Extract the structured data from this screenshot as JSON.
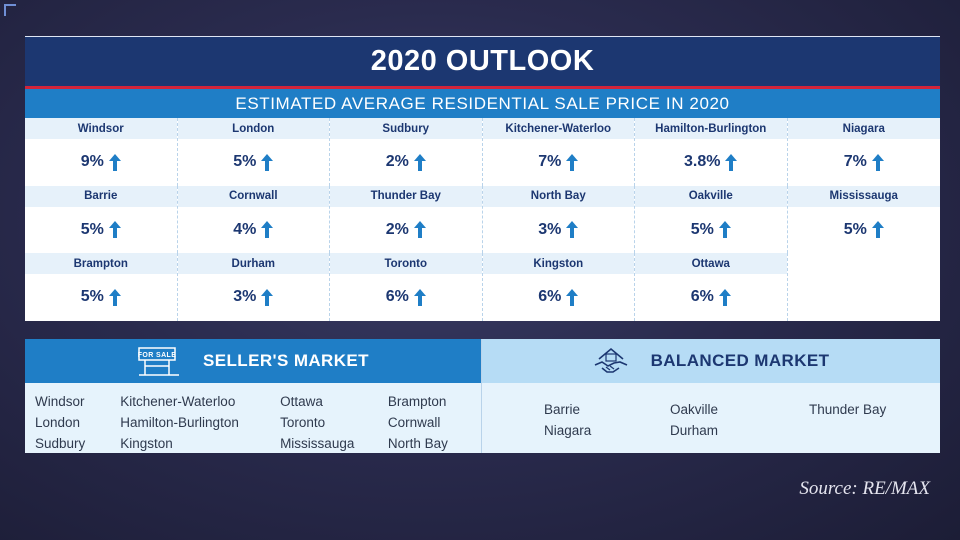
{
  "title": "2020 OUTLOOK",
  "subtitle": "ESTIMATED AVERAGE RESIDENTIAL SALE PRICE IN 2020",
  "cities": [
    {
      "name": "Windsor",
      "value": "9%"
    },
    {
      "name": "London",
      "value": "5%"
    },
    {
      "name": "Sudbury",
      "value": "2%"
    },
    {
      "name": "Kitchener-Waterloo",
      "value": "7%"
    },
    {
      "name": "Hamilton-Burlington",
      "value": "3.8%"
    },
    {
      "name": "Niagara",
      "value": "7%"
    },
    {
      "name": "Barrie",
      "value": "5%"
    },
    {
      "name": "Cornwall",
      "value": "4%"
    },
    {
      "name": "Thunder Bay",
      "value": "2%"
    },
    {
      "name": "North Bay",
      "value": "3%"
    },
    {
      "name": "Oakville",
      "value": "5%"
    },
    {
      "name": "Mississauga",
      "value": "5%"
    },
    {
      "name": "Brampton",
      "value": "5%"
    },
    {
      "name": "Durham",
      "value": "3%"
    },
    {
      "name": "Toronto",
      "value": "6%"
    },
    {
      "name": "Kingston",
      "value": "6%"
    },
    {
      "name": "Ottawa",
      "value": "6%"
    }
  ],
  "trend_icon": "arrow-up-icon",
  "seller": {
    "label": "SELLER'S MARKET",
    "sign_text": "FOR SALE",
    "icon": "for-sale-sign-icon",
    "columns": [
      [
        "Windsor",
        "London",
        "Sudbury"
      ],
      [
        "Kitchener-Waterloo",
        "Hamilton-Burlington",
        "Kingston"
      ],
      [
        "Ottawa",
        "Toronto",
        "Mississauga"
      ],
      [
        "Brampton",
        "Cornwall",
        "North Bay"
      ]
    ]
  },
  "balanced": {
    "label": "BALANCED MARKET",
    "icon": "handshake-house-icon",
    "columns": [
      [
        "Barrie",
        "Niagara"
      ],
      [
        "Oakville",
        "Durham"
      ],
      [
        "Thunder Bay"
      ]
    ]
  },
  "source": "Source: RE/MAX",
  "colors": {
    "navy": "#1c3771",
    "blue": "#1f7ec6",
    "light_blue": "#b6dcf5",
    "red_accent": "#d2243a",
    "background": "#2a2b4e"
  }
}
